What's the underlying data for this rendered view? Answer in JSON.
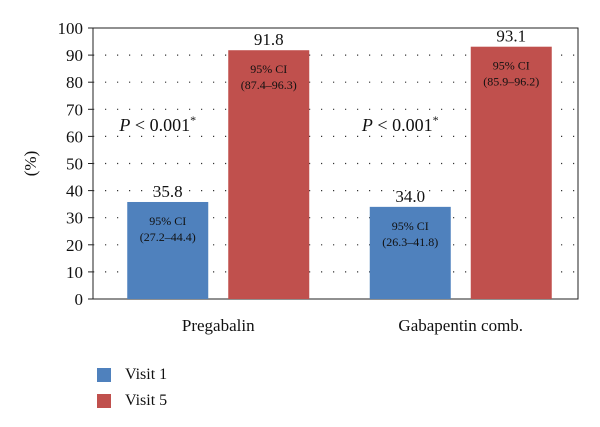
{
  "chart_data": {
    "type": "bar",
    "categories": [
      "Pregabalin",
      "Gabapentin comb."
    ],
    "series": [
      {
        "name": "Visit 1",
        "color": "#4f81bd",
        "values": [
          35.8,
          34.0
        ],
        "value_labels": [
          "35.8",
          "34.0"
        ],
        "ci_labels": [
          [
            "95% CI",
            "(27.2–44.4)"
          ],
          [
            "95% CI",
            "(26.3–41.8)"
          ]
        ]
      },
      {
        "name": "Visit 5",
        "color": "#c0504d",
        "values": [
          91.8,
          93.1
        ],
        "value_labels": [
          "91.8",
          "93.1"
        ],
        "ci_labels": [
          [
            "95% CI",
            "(87.4–96.3)"
          ],
          [
            "95% CI",
            "(85.9–96.2)"
          ]
        ]
      }
    ],
    "annotations": [
      {
        "category": "Pregabalin",
        "italic_part": "P",
        "text_part": " < 0.001",
        "superscript": "*"
      },
      {
        "category": "Gabapentin comb.",
        "italic_part": "P",
        "text_part": " < 0.001",
        "superscript": "*"
      }
    ],
    "ylabel": "(%)",
    "xlabel": "",
    "ylim": [
      0,
      100
    ],
    "yticks": [
      0,
      10,
      20,
      30,
      40,
      50,
      60,
      70,
      80,
      90,
      100
    ],
    "grid": "dotted horizontal",
    "legend_position": "bottom-left"
  }
}
